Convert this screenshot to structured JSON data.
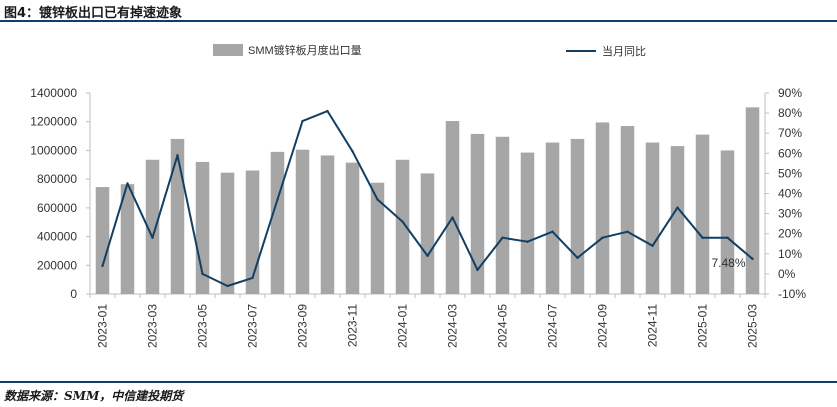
{
  "figure": {
    "title": "图4：镀锌板出口已有掉速迹象",
    "source": "数据来源：SMM，中信建投期货"
  },
  "chart_data": {
    "type": "bar+line",
    "categories": [
      "2023-01",
      "2023-02",
      "2023-03",
      "2023-04",
      "2023-05",
      "2023-06",
      "2023-07",
      "2023-08",
      "2023-09",
      "2023-10",
      "2023-11",
      "2023-12",
      "2024-01",
      "2024-02",
      "2024-03",
      "2024-04",
      "2024-05",
      "2024-06",
      "2024-07",
      "2024-08",
      "2024-09",
      "2024-10",
      "2024-11",
      "2024-12",
      "2025-01",
      "2025-02",
      "2025-03"
    ],
    "x_tick_labels": [
      "2023-01",
      "2023-03",
      "2023-05",
      "2023-07",
      "2023-09",
      "2023-11",
      "2024-01",
      "2024-03",
      "2024-05",
      "2024-07",
      "2024-09",
      "2024-11",
      "2025-01",
      "2025-03"
    ],
    "series": [
      {
        "name": "SMM镀锌板月度出口量",
        "kind": "bar",
        "axis": "left",
        "color": "#a6a6a6",
        "values": [
          745000,
          765000,
          935000,
          1080000,
          920000,
          845000,
          860000,
          990000,
          1005000,
          965000,
          915000,
          775000,
          935000,
          840000,
          1205000,
          1115000,
          1095000,
          985000,
          1055000,
          1080000,
          1195000,
          1170000,
          1055000,
          1030000,
          1110000,
          1000000,
          1300000
        ]
      },
      {
        "name": "当月同比",
        "kind": "line",
        "axis": "right",
        "color": "#123f64",
        "values": [
          4,
          45,
          18,
          59,
          0,
          -6,
          -2,
          37,
          76,
          81,
          61,
          37,
          26,
          9,
          28,
          2,
          18,
          16,
          21,
          8,
          18,
          21,
          14,
          33,
          18,
          18,
          7.48
        ]
      }
    ],
    "y_left": {
      "min": 0,
      "max": 1400000,
      "ticks": [
        0,
        200000,
        400000,
        600000,
        800000,
        1000000,
        1200000,
        1400000
      ]
    },
    "y_right": {
      "min": -10,
      "max": 90,
      "ticks": [
        "-10%",
        "0%",
        "10%",
        "20%",
        "30%",
        "40%",
        "50%",
        "60%",
        "70%",
        "80%",
        "90%"
      ]
    },
    "annotation": {
      "text": "7.48%",
      "category": "2025-03"
    },
    "grid": false,
    "legend_position": "top"
  }
}
